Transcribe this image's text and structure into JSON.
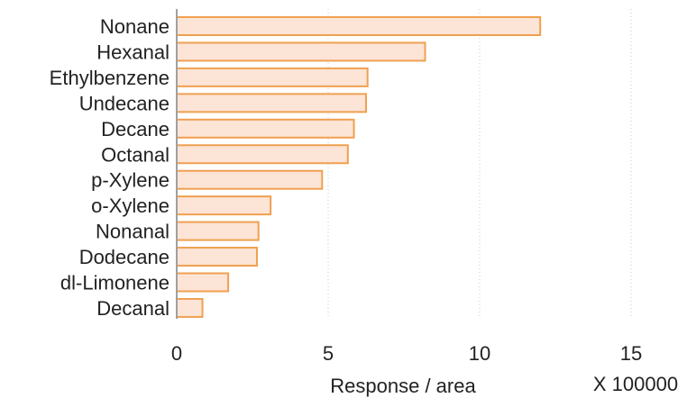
{
  "chart_data": {
    "type": "bar",
    "orientation": "horizontal",
    "categories": [
      "Nonane",
      "Hexanal",
      "Ethylbenzene",
      "Undecane",
      "Decane",
      "Octanal",
      "p-Xylene",
      "o-Xylene",
      "Nonanal",
      "Dodecane",
      "dl-Limonene",
      "Decanal"
    ],
    "values": [
      12.0,
      8.2,
      6.3,
      6.25,
      5.85,
      5.65,
      4.8,
      3.1,
      2.7,
      2.65,
      1.7,
      0.85
    ],
    "title": "",
    "xlabel": "Response / area",
    "ylabel": "",
    "x_multiplier_label": "X 100000",
    "xlim": [
      0,
      15
    ],
    "xticks": [
      "0",
      "5",
      "10",
      "15"
    ],
    "grid": "vertical dotted",
    "legend": "none",
    "colors": {
      "bar_fill": "#fce4d6",
      "bar_stroke": "#f0a050",
      "grid": "#c8c8c8",
      "axis": "#a0a0a0",
      "text": "#222222"
    }
  }
}
